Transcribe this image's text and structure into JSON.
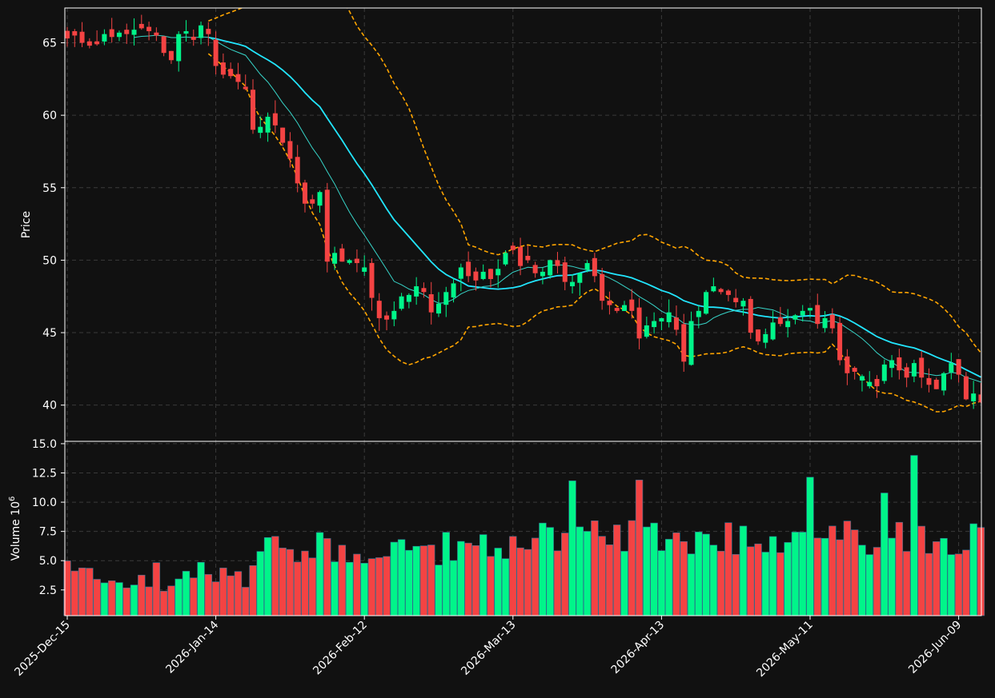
{
  "colors": {
    "background": "#111111",
    "up": "#00f58a",
    "down": "#f44343",
    "frame": "#ffffff",
    "grid": "#3a3a3a",
    "ma_fast": "#22e6ff",
    "ma_slow": "#37d4c8",
    "bands": "#ffa500"
  },
  "chart_data": {
    "type": "candlestick",
    "price_axis": {
      "label": "Price",
      "ylim": [
        37.5,
        67.4
      ],
      "ticks": [
        40,
        45,
        50,
        55,
        60,
        65
      ]
    },
    "volume_axis": {
      "label": "Volume  10",
      "label_exponent": "6",
      "ylim": [
        0.3,
        15.2
      ],
      "ticks": [
        2.5,
        5.0,
        7.5,
        10.0,
        12.5,
        15.0
      ],
      "tick_labels": [
        "2.5",
        "5.0",
        "7.5",
        "10.0",
        "12.5",
        "15.0"
      ]
    },
    "x_tick_labels": [
      {
        "index": 0,
        "label": "2025-Dec-15"
      },
      {
        "index": 20,
        "label": "2026-Jan-14"
      },
      {
        "index": 40,
        "label": "2026-Feb-12"
      },
      {
        "index": 60,
        "label": "2026-Mar-13"
      },
      {
        "index": 80,
        "label": "2026-Apr-13"
      },
      {
        "index": 100,
        "label": "2026-May-11"
      },
      {
        "index": 120,
        "label": "2026-Jun-09"
      }
    ],
    "grid": true,
    "bar_count": 124,
    "close": [
      65.3,
      65.5,
      65.0,
      64.8,
      64.9,
      65.6,
      65.4,
      65.7,
      65.6,
      65.9,
      66.0,
      65.8,
      65.5,
      64.3,
      63.8,
      65.6,
      65.8,
      65.2,
      66.2,
      65.6,
      63.4,
      62.8,
      62.7,
      62.3,
      61.8,
      59.0,
      59.2,
      59.9,
      59.3,
      58.1,
      57.0,
      55.3,
      53.9,
      53.9,
      54.7,
      49.9,
      50.5,
      49.9,
      50.0,
      49.8,
      49.5,
      47.4,
      46.0,
      45.9,
      46.5,
      47.5,
      47.6,
      48.2,
      47.8,
      46.4,
      47.0,
      47.8,
      48.4,
      49.5,
      48.9,
      48.6,
      49.2,
      48.7,
      49.4,
      50.5,
      50.7,
      49.6,
      50.0,
      49.1,
      49.2,
      50.0,
      49.6,
      48.5,
      48.5,
      49.1,
      49.8,
      48.9,
      47.2,
      46.9,
      46.5,
      46.9,
      46.5,
      44.6,
      45.5,
      45.8,
      46.0,
      46.4,
      45.2,
      43.0,
      45.8,
      46.5,
      47.8,
      48.2,
      47.8,
      47.6,
      47.1,
      47.2,
      45.0,
      44.4,
      44.9,
      45.7,
      45.6,
      45.8,
      46.2,
      46.5,
      46.7,
      45.6,
      46.0,
      45.3,
      43.1,
      42.2,
      42.3,
      42.0,
      41.6,
      41.3,
      42.8,
      43.1,
      42.4,
      41.9,
      42.9,
      41.9,
      41.4,
      41.1,
      42.2,
      42.9,
      42.1,
      40.4,
      40.8,
      40.2
    ]
  }
}
